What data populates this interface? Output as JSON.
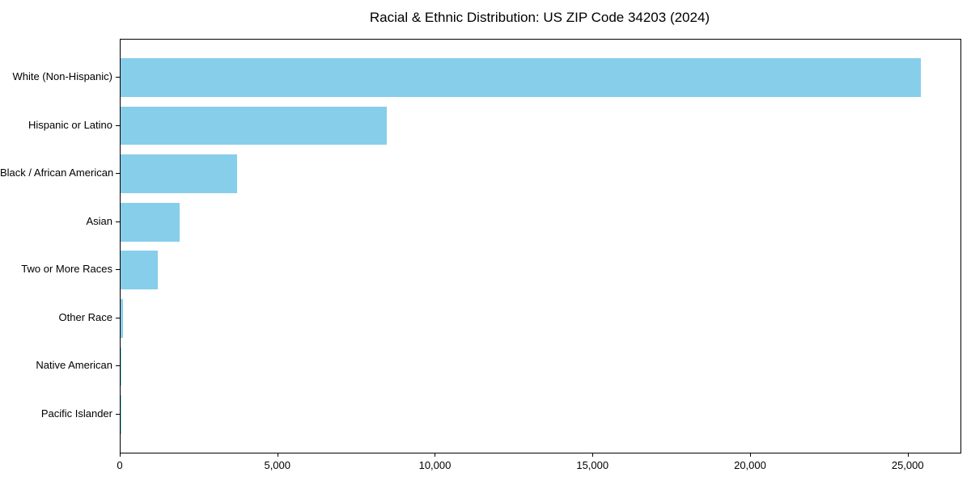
{
  "chart_data": {
    "type": "bar",
    "orientation": "horizontal",
    "title": "Racial & Ethnic Distribution: US ZIP Code 34203 (2024)",
    "categories": [
      "White (Non-Hispanic)",
      "Hispanic or Latino",
      "Black / African American",
      "Asian",
      "Two or More Races",
      "Other Race",
      "Native American",
      "Pacific Islander"
    ],
    "values": [
      25400,
      8455,
      3690,
      1875,
      1185,
      75,
      25,
      10
    ],
    "xlabel": "",
    "ylabel": "",
    "xlim": [
      0,
      26650
    ],
    "xticks": [
      0,
      5000,
      10000,
      15000,
      20000,
      25000
    ],
    "xtick_labels": [
      "0",
      "5,000",
      "10,000",
      "15,000",
      "20,000",
      "25,000"
    ],
    "grid": false,
    "legend": "none",
    "bar_color": "#87CEEB",
    "axis_color": "#000000"
  }
}
